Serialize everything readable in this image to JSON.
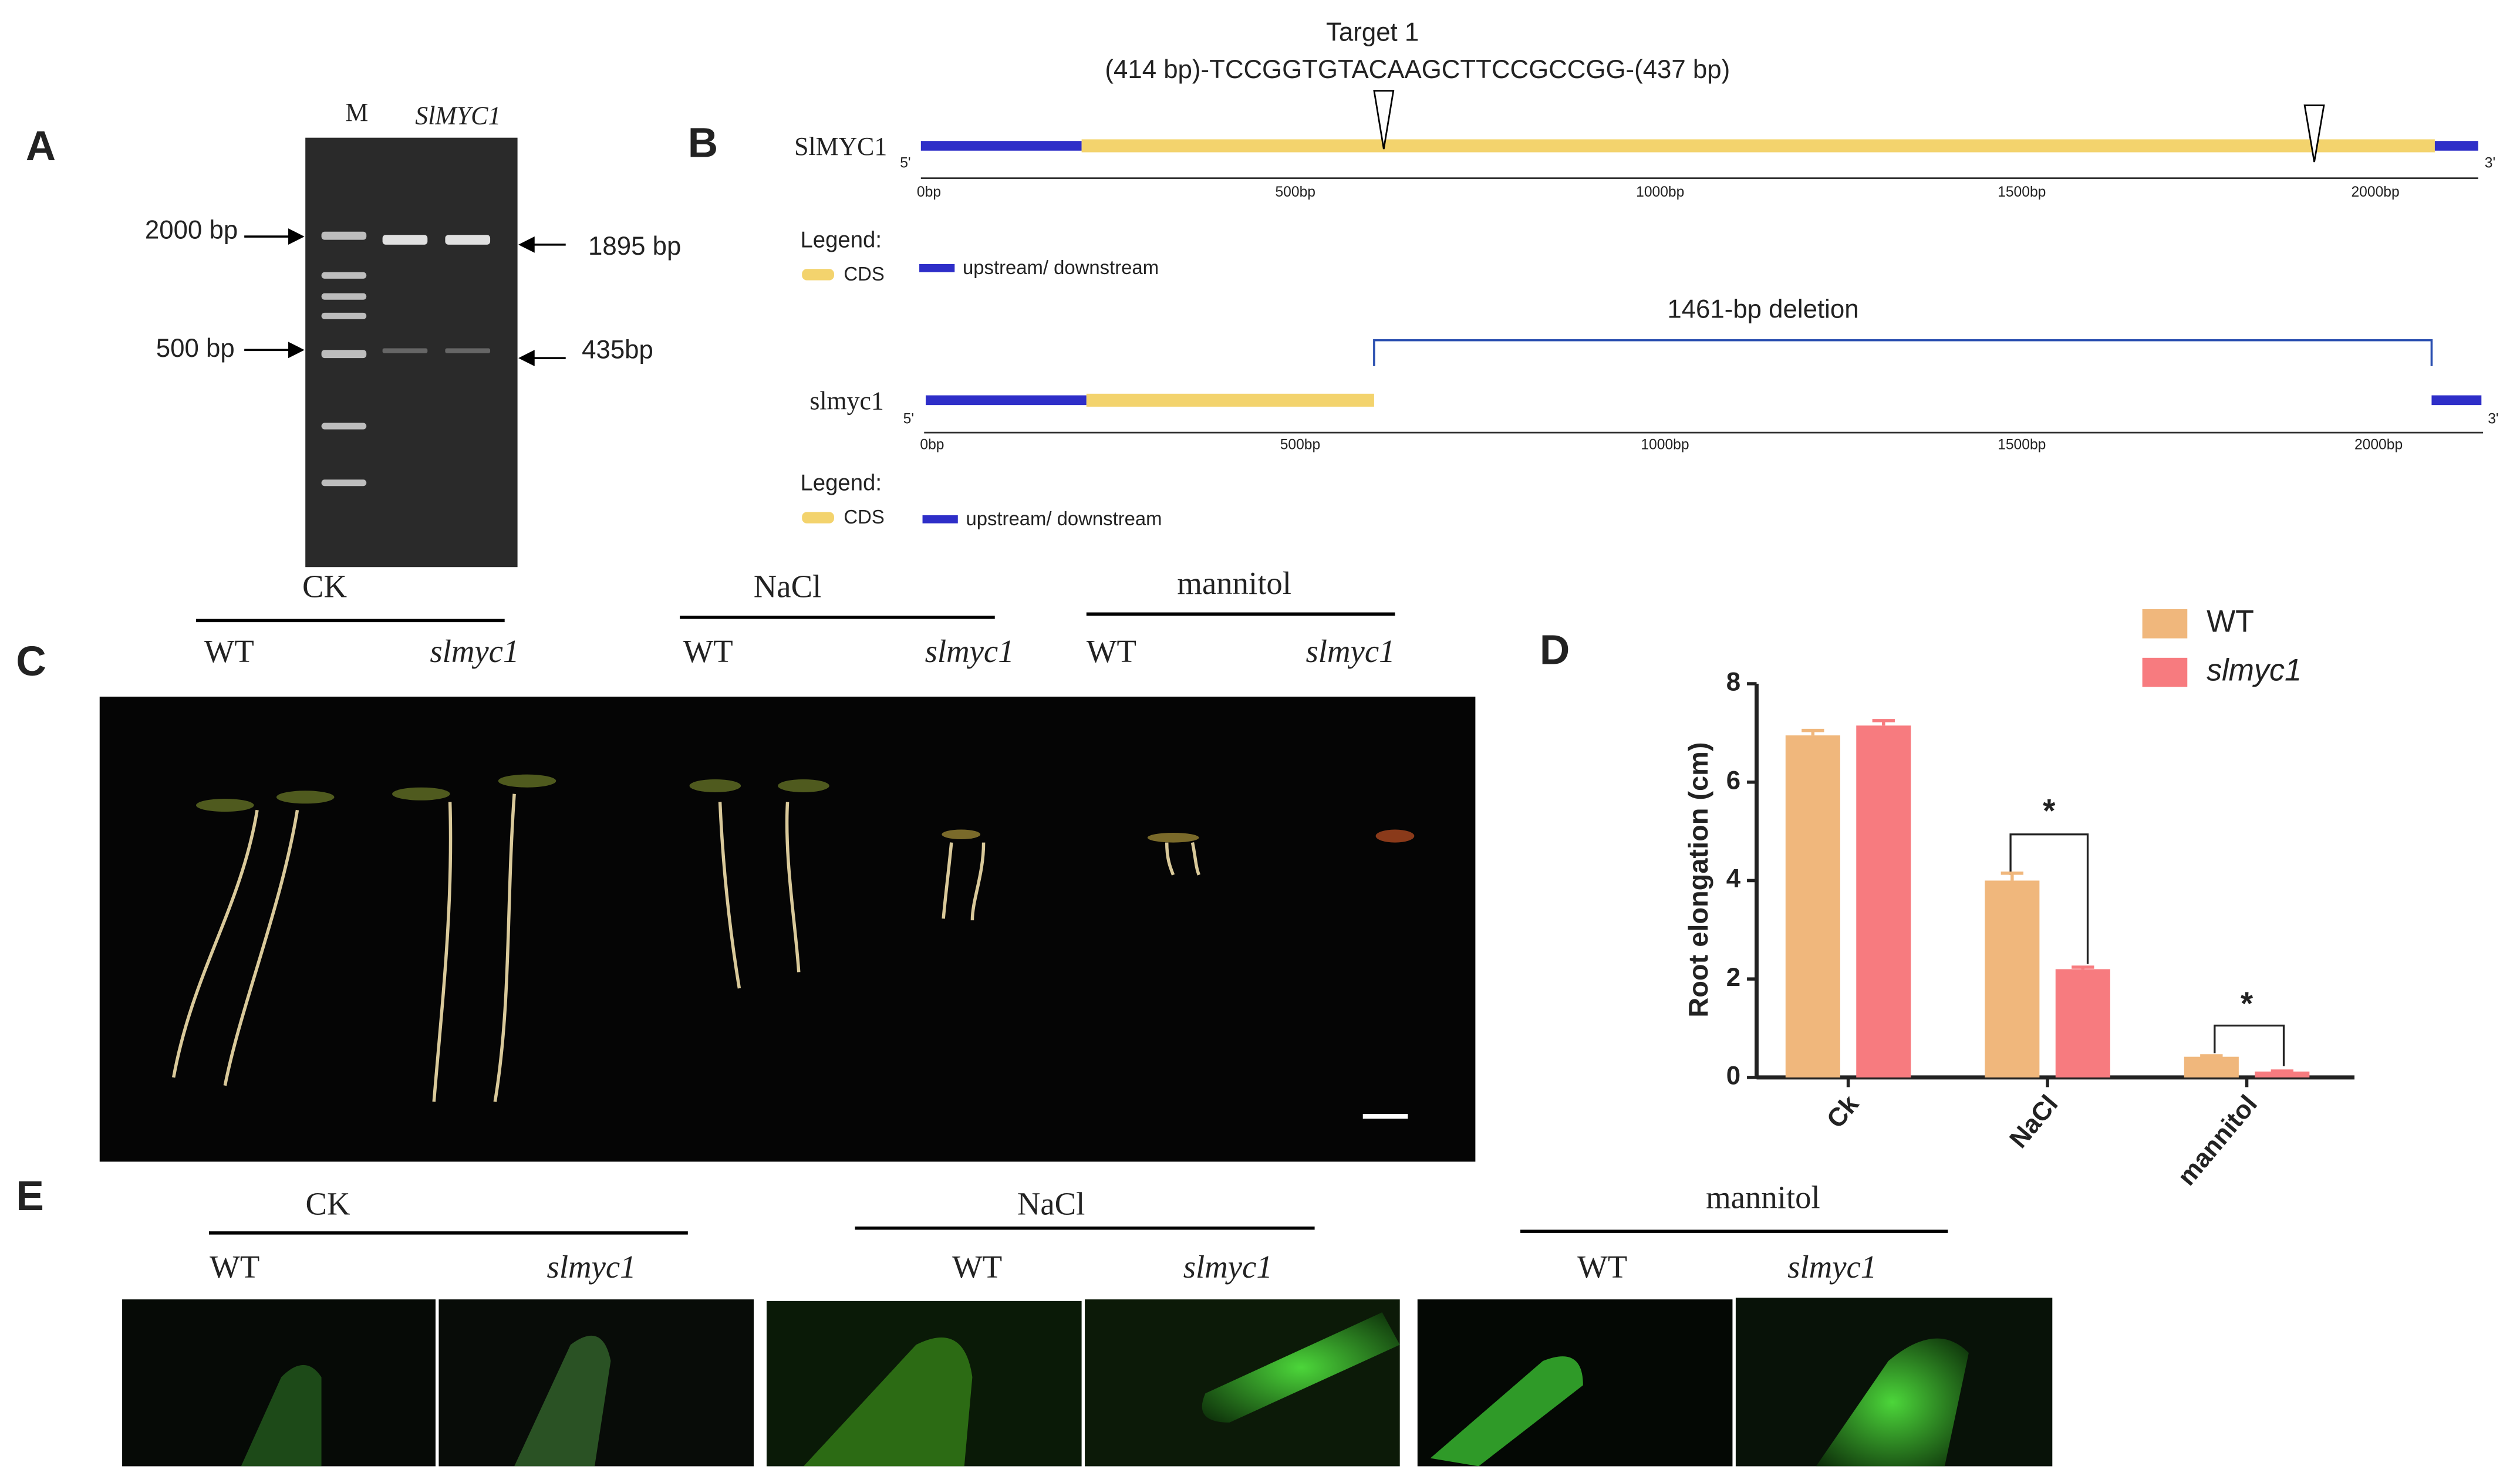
{
  "panel_labels": [
    "A",
    "B",
    "C",
    "D",
    "E"
  ],
  "gel": {
    "lanes": [
      "M",
      "SlMYC1"
    ],
    "left_labels": [
      "2000 bp",
      "500 bp"
    ],
    "right_labels": [
      "1895 bp",
      "435bp"
    ]
  },
  "gene": {
    "target_title": "Target 1",
    "target_seq": "(414 bp)-TCCGGTGTACAAGCTTCCGCCGG-(437 bp)",
    "tracks": [
      "SlMYC1",
      "slmyc1"
    ],
    "deletion": "1461-bp deletion",
    "axis_ticks": [
      "0bp",
      "500bp",
      "1000bp",
      "1500bp",
      "2000bp"
    ],
    "five_prime": "5'",
    "three_prime": "3'",
    "legend_title": "Legend:",
    "legend_cds": "CDS",
    "legend_utr": "upstream/ downstream"
  },
  "seedlings": [
    {
      "group": "CK",
      "labels": [
        "WT",
        "slmyc1"
      ]
    },
    {
      "group": "NaCl",
      "labels": [
        "WT",
        "slmyc1"
      ]
    },
    {
      "group": "mannitol",
      "labels": [
        "WT",
        "slmyc1"
      ]
    }
  ],
  "chart_data": {
    "type": "bar",
    "y_label": "Root elongation (cm)",
    "categories": [
      "Ck",
      "NaCl",
      "mannitol"
    ],
    "series": [
      {
        "name": "WT",
        "color": "#f0b77c",
        "values": [
          6.95,
          4.0,
          0.42
        ],
        "errors": [
          0.1,
          0.15,
          0.02
        ]
      },
      {
        "name": "slmyc1",
        "color": "#f77b7f",
        "values": [
          7.15,
          2.2,
          0.12
        ],
        "errors": [
          0.1,
          0.04,
          0.01
        ]
      }
    ],
    "ylim": [
      0,
      8
    ],
    "yticks": [
      0,
      2,
      4,
      6,
      8
    ],
    "annotations": [
      "*",
      "*"
    ]
  },
  "fluorescence": [
    {
      "group": "CK",
      "labels": [
        "WT",
        "slmyc1"
      ]
    },
    {
      "group": "NaCl",
      "labels": [
        "WT",
        "slmyc1"
      ]
    },
    {
      "group": "mannitol",
      "labels": [
        "WT",
        "slmyc1"
      ]
    }
  ]
}
